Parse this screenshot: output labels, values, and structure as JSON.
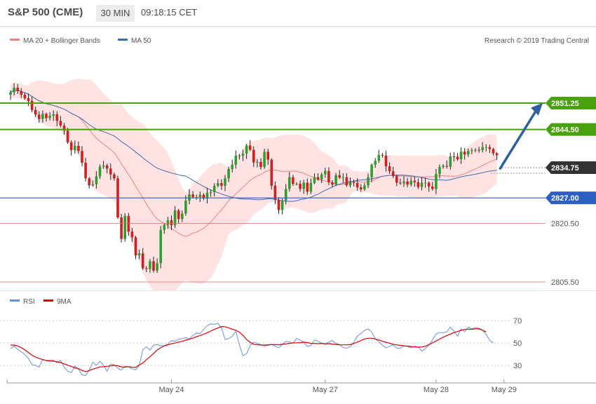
{
  "header": {
    "title": "S&P 500 (CME)",
    "timeframe": "30 MIN",
    "time": "09:18:15 CET"
  },
  "legend": {
    "ma20_label": "MA 20 + Bollinger Bands",
    "ma50_label": "MA 50",
    "rsi_label": "RSI",
    "rsi_ma_label": "9MA",
    "credit": "Research © 2019 Trading Central"
  },
  "colors": {
    "candle_up": "#2f9e2f",
    "candle_down": "#d11f1f",
    "bollinger_fill": "#ffdcdc",
    "ma20": "#f08080",
    "ma50": "#3b6db5",
    "resistance": "#4aa10f",
    "pivot": "#2d5ec2",
    "support": "#e06a6a",
    "current": "#333333",
    "rsi": "#6b8fe0",
    "rsi_ma": "#e00000",
    "arrow": "#2e5fa3"
  },
  "chart_data": [
    {
      "type": "candlestick",
      "title": "S&P 500 (CME) 30 MIN",
      "ylim": [
        2802.5,
        2858.5
      ],
      "x_ticks": [
        {
          "label": "May 24",
          "index": 45
        },
        {
          "label": "May 27",
          "index": 88
        },
        {
          "label": "May 28",
          "index": 119
        },
        {
          "label": "May 29",
          "index": 138
        }
      ],
      "levels": [
        {
          "value": 2851.25,
          "label": "2851.25",
          "kind": "resistance"
        },
        {
          "value": 2844.5,
          "label": "2844.50",
          "kind": "resistance"
        },
        {
          "value": 2834.75,
          "label": "2834.75",
          "kind": "current"
        },
        {
          "value": 2827.0,
          "label": "2827.00",
          "kind": "pivot"
        },
        {
          "value": 2820.5,
          "label": "2820.50",
          "kind": "support"
        },
        {
          "value": 2805.5,
          "label": "2805.50",
          "kind": "support"
        }
      ],
      "close": [
        2854.0,
        2855.2,
        2854.3,
        2853.4,
        2852.5,
        2851.8,
        2849.5,
        2848.3,
        2847.2,
        2848.5,
        2847.4,
        2848.0,
        2848.4,
        2846.7,
        2845.5,
        2844.2,
        2841.2,
        2839.2,
        2840.3,
        2839.0,
        2836.0,
        2832.0,
        2830.2,
        2830.5,
        2832.5,
        2835.0,
        2835.3,
        2834.5,
        2833.0,
        2832.0,
        2822.0,
        2816.5,
        2822.4,
        2818.4,
        2816.9,
        2812.3,
        2812.8,
        2809.0,
        2808.8,
        2810.8,
        2808.4,
        2810.3,
        2818.8,
        2820.1,
        2821.3,
        2820.0,
        2823.8,
        2821.6,
        2823.0,
        2826.3,
        2827.9,
        2827.2,
        2827.2,
        2827.8,
        2826.9,
        2828.3,
        2828.5,
        2830.1,
        2830.8,
        2830.1,
        2832.0,
        2834.4,
        2835.5,
        2837.8,
        2837.8,
        2838.3,
        2840.4,
        2839.3,
        2836.1,
        2836.2,
        2834.9,
        2838.8,
        2836.8,
        2830.1,
        2826.5,
        2823.9,
        2826.3,
        2829.3,
        2832.3,
        2830.6,
        2830.6,
        2829.3,
        2830.9,
        2828.6,
        2830.8,
        2832.3,
        2831.7,
        2833.0,
        2833.9,
        2831.0,
        2830.4,
        2832.8,
        2832.2,
        2832.3,
        2830.2,
        2831.0,
        2830.8,
        2829.7,
        2829.2,
        2830.2,
        2832.3,
        2835.5,
        2836.5,
        2838.0,
        2837.8,
        2835.1,
        2833.8,
        2832.6,
        2830.9,
        2830.7,
        2831.2,
        2830.4,
        2831.4,
        2831.0,
        2829.8,
        2830.9,
        2830.9,
        2829.9,
        2829.3,
        2833.1,
        2834.9,
        2835.2,
        2835.0,
        2837.6,
        2837.5,
        2836.9,
        2838.8,
        2838.1,
        2839.0,
        2839.2,
        2839.3,
        2839.2,
        2840.0,
        2840.0,
        2839.5,
        2838.4,
        2837.9
      ]
    },
    {
      "type": "line",
      "title": "RSI",
      "ylim": [
        17,
        78
      ],
      "y_ticks": [
        30,
        50,
        70
      ],
      "series": [
        {
          "name": "RSI",
          "values": [
            45.0,
            47.2,
            44.4,
            42.2,
            39.9,
            36.1,
            30.8,
            30.0,
            28.5,
            35.4,
            34.5,
            34.6,
            34.6,
            32.4,
            34.5,
            28.4,
            24.9,
            23.6,
            29.5,
            26.5,
            21.6,
            20.9,
            25.9,
            32.9,
            30.2,
            33.7,
            30.3,
            24.9,
            31.2,
            30.5,
            27.7,
            25.8,
            29.4,
            28.7,
            26.9,
            26.1,
            30.1,
            44.0,
            46.6,
            43.7,
            48.0,
            48.5,
            47.5,
            47.7,
            49.0,
            52.1,
            51.4,
            53.4,
            53.9,
            54.9,
            53.5,
            56.9,
            58.8,
            58.3,
            62.0,
            65.5,
            67.0,
            66.6,
            67.5,
            63.2,
            53.4,
            53.8,
            56.0,
            60.4,
            48.2,
            38.6,
            40.4,
            47.5,
            50.7,
            49.8,
            48.5,
            47.4,
            47.8,
            48.8,
            47.0,
            45.7,
            48.9,
            51.4,
            51.0,
            49.6,
            54.0,
            52.5,
            50.7,
            46.8,
            47.9,
            52.6,
            51.7,
            49.8,
            48.7,
            50.8,
            52.2,
            49.5,
            48.7,
            45.9,
            45.4,
            46.7,
            50.8,
            56.1,
            58.5,
            61.1,
            62.5,
            59.8,
            53.6,
            51.1,
            48.2,
            45.7,
            47.0,
            48.5,
            45.5,
            45.3,
            47.5,
            46.9,
            45.7,
            47.1,
            46.5,
            42.8,
            44.9,
            48.2,
            52.7,
            58.0,
            59.2,
            59.2,
            60.0,
            64.1,
            60.7,
            56.1,
            62.4,
            60.1,
            64.1,
            62.7,
            63.6,
            63.2,
            61.5,
            57.8,
            52.2,
            50.1
          ]
        },
        {
          "name": "9MA",
          "values": [
            48.0,
            48.2,
            47.3,
            45.8,
            43.9,
            41.5,
            39.1,
            37.5,
            36.2,
            35.2,
            34.4,
            33.9,
            33.8,
            33.2,
            32.6,
            31.4,
            30.2,
            29.1,
            27.8,
            27.1,
            25.5,
            24.5,
            25.4,
            26.7,
            27.6,
            28.7,
            28.9,
            29.2,
            29.6,
            30.0,
            29.7,
            28.6,
            28.5,
            28.9,
            28.4,
            28.3,
            30.4,
            32.1,
            35.2,
            37.7,
            40.7,
            43.7,
            45.7,
            47.5,
            48.3,
            49.3,
            49.9,
            50.8,
            51.5,
            52.5,
            53.4,
            54.3,
            55.6,
            56.6,
            57.8,
            59.1,
            60.6,
            62.1,
            63.4,
            64.6,
            64.5,
            63.5,
            62.4,
            61.3,
            59.6,
            56.8,
            53.1,
            50.6,
            48.9,
            48.5,
            48.1,
            48.1,
            48.4,
            48.5,
            48.5,
            48.4,
            48.8,
            49.2,
            49.6,
            50.1,
            50.1,
            50.3,
            50.7,
            50.3,
            49.7,
            49.6,
            49.4,
            49.6,
            49.3,
            49.4,
            49.0,
            48.7,
            48.4,
            48.3,
            48.3,
            48.5,
            49.5,
            50.8,
            52.2,
            53.6,
            54.2,
            54.2,
            53.6,
            52.6,
            51.6,
            50.6,
            49.8,
            48.9,
            48.3,
            47.9,
            47.5,
            47.2,
            46.9,
            46.4,
            46.3,
            46.4,
            47.2,
            48.4,
            50.1,
            51.8,
            53.5,
            55.2,
            56.5,
            57.9,
            59.3,
            60.2,
            61.3,
            62.1,
            62.3,
            62.2,
            62.6,
            62.5,
            61.4,
            59.9
          ]
        }
      ]
    }
  ]
}
